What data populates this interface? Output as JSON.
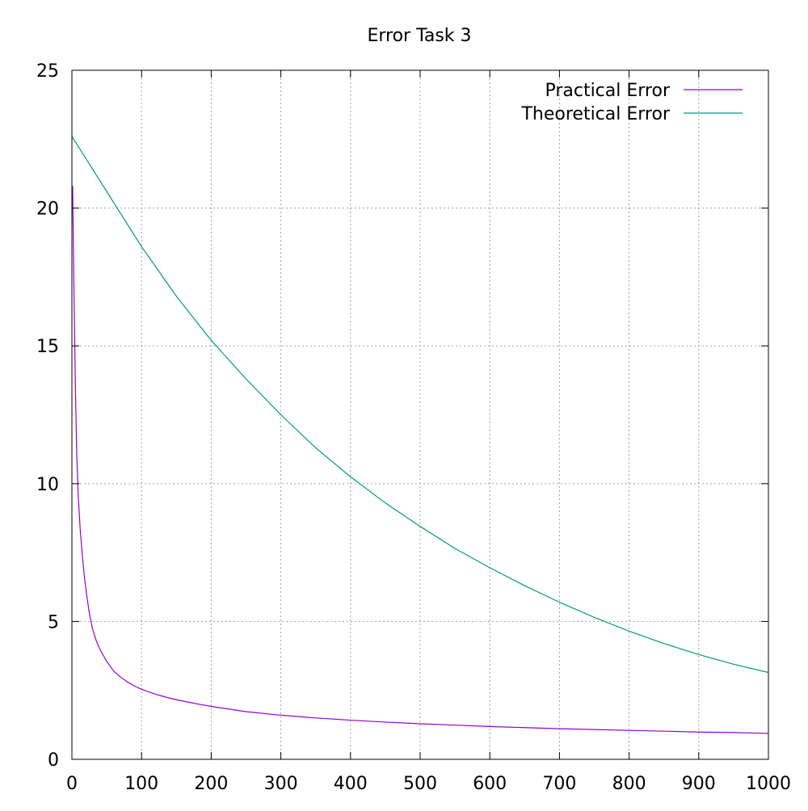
{
  "chart_data": {
    "type": "line",
    "title": "Error Task 3",
    "xlim": [
      0,
      1000
    ],
    "ylim": [
      0,
      25
    ],
    "grid": true,
    "legend_position": "top-right",
    "x_ticks": [
      "0",
      "100",
      "200",
      "300",
      "400",
      "500",
      "600",
      "700",
      "800",
      "900",
      "1000"
    ],
    "y_ticks": [
      "0",
      "5",
      "10",
      "15",
      "20",
      "25"
    ],
    "series": [
      {
        "name": "Practical Error",
        "color": "#9400d3",
        "points": [
          [
            1,
            20.8
          ],
          [
            3,
            17.0
          ],
          [
            5,
            13.5
          ],
          [
            7,
            11.0
          ],
          [
            9,
            9.6
          ],
          [
            12,
            8.3
          ],
          [
            15,
            7.4
          ],
          [
            18,
            6.6
          ],
          [
            21,
            6.0
          ],
          [
            25,
            5.3
          ],
          [
            30,
            4.7
          ],
          [
            35,
            4.3
          ],
          [
            40,
            4.0
          ],
          [
            50,
            3.55
          ],
          [
            60,
            3.2
          ],
          [
            70,
            2.98
          ],
          [
            80,
            2.8
          ],
          [
            90,
            2.66
          ],
          [
            100,
            2.54
          ],
          [
            120,
            2.36
          ],
          [
            140,
            2.22
          ],
          [
            160,
            2.11
          ],
          [
            180,
            2.01
          ],
          [
            200,
            1.92
          ],
          [
            250,
            1.73
          ],
          [
            300,
            1.6
          ],
          [
            350,
            1.5
          ],
          [
            400,
            1.42
          ],
          [
            450,
            1.35
          ],
          [
            500,
            1.29
          ],
          [
            550,
            1.24
          ],
          [
            600,
            1.19
          ],
          [
            650,
            1.15
          ],
          [
            700,
            1.11
          ],
          [
            750,
            1.08
          ],
          [
            800,
            1.05
          ],
          [
            850,
            1.02
          ],
          [
            900,
            0.99
          ],
          [
            950,
            0.97
          ],
          [
            1000,
            0.94
          ]
        ]
      },
      {
        "name": "Theoretical Error",
        "color": "#009e73",
        "points": [
          [
            0,
            22.6
          ],
          [
            50,
            20.6
          ],
          [
            100,
            18.6
          ],
          [
            150,
            16.8
          ],
          [
            200,
            15.2
          ],
          [
            250,
            13.8
          ],
          [
            300,
            12.5
          ],
          [
            350,
            11.3
          ],
          [
            400,
            10.25
          ],
          [
            450,
            9.3
          ],
          [
            500,
            8.45
          ],
          [
            550,
            7.65
          ],
          [
            600,
            6.95
          ],
          [
            650,
            6.3
          ],
          [
            700,
            5.7
          ],
          [
            750,
            5.15
          ],
          [
            800,
            4.65
          ],
          [
            850,
            4.2
          ],
          [
            900,
            3.8
          ],
          [
            950,
            3.45
          ],
          [
            1000,
            3.15
          ]
        ]
      }
    ]
  }
}
